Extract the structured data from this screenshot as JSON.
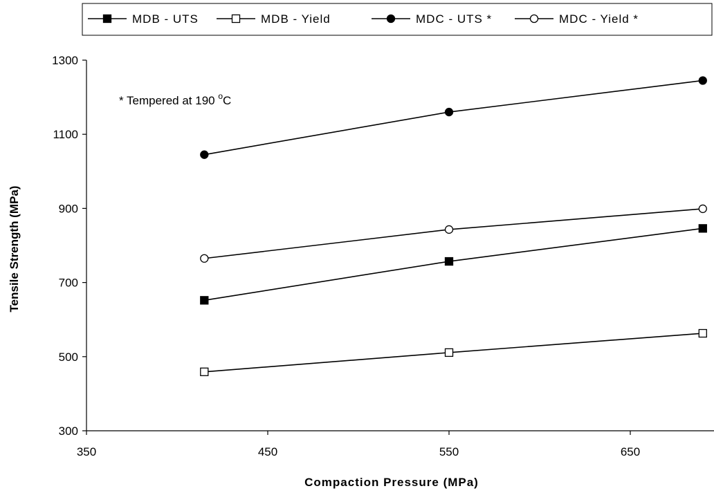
{
  "chart_data": {
    "type": "line",
    "xlabel": "Compaction Pressure (MPa)",
    "ylabel": "Tensile Strength (MPa)",
    "xlim": [
      350,
      690
    ],
    "ylim": [
      300,
      1300
    ],
    "xticks": [
      350,
      450,
      550,
      650
    ],
    "yticks": [
      300,
      500,
      700,
      900,
      1100,
      1300
    ],
    "grid": false,
    "legend_position": "top",
    "x": [
      415,
      550,
      690
    ],
    "series": [
      {
        "name": "MDB - UTS",
        "marker": "square",
        "filled": true,
        "values": [
          652,
          757,
          846
        ]
      },
      {
        "name": "MDB - Yield",
        "marker": "square",
        "filled": false,
        "values": [
          459,
          511,
          563
        ]
      },
      {
        "name": "MDC - UTS *",
        "marker": "circle",
        "filled": true,
        "values": [
          1045,
          1160,
          1245
        ]
      },
      {
        "name": "MDC - Yield *",
        "marker": "circle",
        "filled": false,
        "values": [
          765,
          843,
          899
        ]
      }
    ],
    "annotation": {
      "prefix": "* Tempered at 190 ",
      "superscript": "o",
      "suffix": "C"
    }
  }
}
